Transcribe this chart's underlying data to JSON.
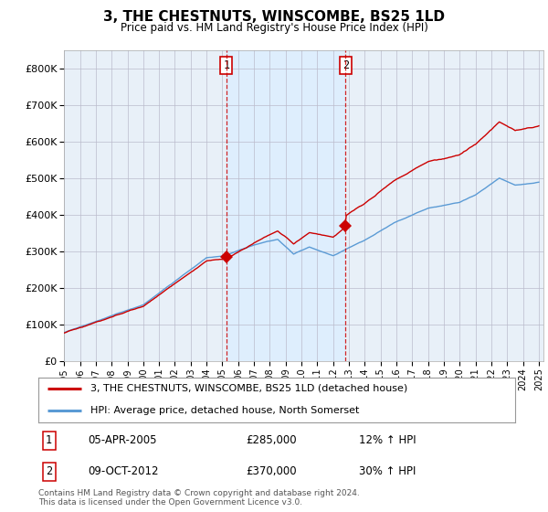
{
  "title": "3, THE CHESTNUTS, WINSCOMBE, BS25 1LD",
  "subtitle": "Price paid vs. HM Land Registry's House Price Index (HPI)",
  "red_label": "3, THE CHESTNUTS, WINSCOMBE, BS25 1LD (detached house)",
  "blue_label": "HPI: Average price, detached house, North Somerset",
  "transaction1": {
    "label": "1",
    "date": "05-APR-2005",
    "price": "£285,000",
    "hpi": "12% ↑ HPI",
    "year": 2005.25,
    "price_val": 285000
  },
  "transaction2": {
    "label": "2",
    "date": "09-OCT-2012",
    "price": "£370,000",
    "hpi": "30% ↑ HPI",
    "year": 2012.79,
    "price_val": 370000
  },
  "footer": "Contains HM Land Registry data © Crown copyright and database right 2024.\nThis data is licensed under the Open Government Licence v3.0.",
  "red_color": "#cc0000",
  "blue_color": "#5b9bd5",
  "shade_color": "#ddeeff",
  "dashed_color": "#cc0000",
  "plot_bg": "#e8f0f8",
  "ylim_max": 850000,
  "xlim_start": 1995.0,
  "xlim_end": 2025.3
}
